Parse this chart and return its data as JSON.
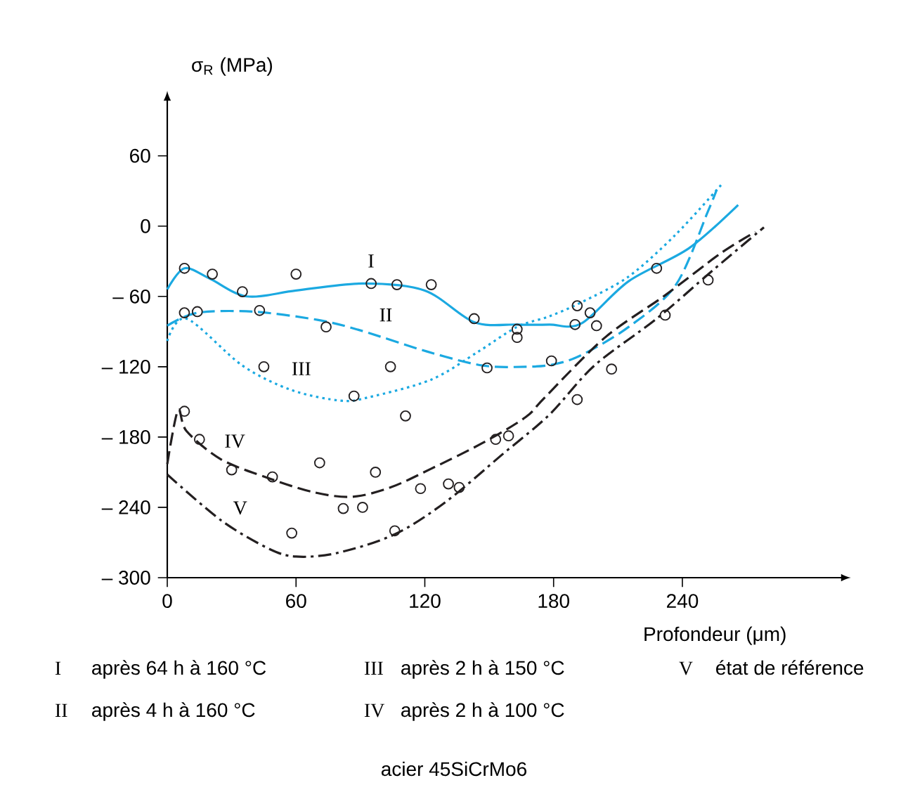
{
  "chart_data": {
    "type": "line",
    "xlabel": "Profondeur (μm)",
    "ylabel": "σ$_{R}$ (MPa)",
    "xlim": [
      0,
      315
    ],
    "ylim": [
      -300,
      109
    ],
    "xticks": [
      0,
      60,
      120,
      180,
      240
    ],
    "yticks": [
      60,
      0,
      {
        "value": -60,
        "label": "– 60"
      },
      {
        "value": -120,
        "label": "– 120"
      },
      {
        "value": -180,
        "label": "– 180"
      },
      {
        "value": -240,
        "label": "– 240"
      },
      {
        "value": -300,
        "label": "– 300"
      }
    ],
    "series": [
      {
        "name": "I",
        "type": "line",
        "color": "#1ba9e1",
        "line_style": "solid",
        "marker": "none",
        "x": [
          0,
          8,
          20,
          37,
          60,
          91,
          120,
          143,
          163,
          178,
          193,
          215,
          243,
          266
        ],
        "values": [
          -54,
          -36,
          -45,
          -60,
          -55,
          -49,
          -55,
          -82,
          -84,
          -84,
          -83,
          -47,
          -19,
          18
        ]
      },
      {
        "name": "II",
        "type": "line",
        "color": "#1ba9e1",
        "line_style": "dashed",
        "marker": "none",
        "x": [
          0,
          14,
          40,
          70,
          90,
          121,
          147,
          167,
          180,
          193,
          215,
          237,
          252,
          256
        ],
        "values": [
          -85,
          -74,
          -73,
          -80,
          -89,
          -107,
          -119,
          -120,
          -118,
          -110,
          -86,
          -50,
          13,
          31
        ]
      },
      {
        "name": "III",
        "type": "line",
        "color": "#1ba9e1",
        "line_style": "dotted",
        "marker": "none",
        "x": [
          0,
          9,
          35,
          58,
          81,
          94,
          123,
          145,
          163,
          178,
          193,
          215,
          237,
          258
        ],
        "values": [
          -98,
          -79,
          -119,
          -140,
          -149,
          -146,
          -131,
          -107,
          -86,
          -77,
          -65,
          -43,
          -7,
          35
        ]
      },
      {
        "name": "IV",
        "type": "line",
        "color": "#231f20",
        "line_style": "dashed",
        "marker": "none",
        "x": [
          0,
          5,
          9,
          25,
          47,
          68,
          86,
          104,
          123,
          147,
          167,
          176,
          204,
          232,
          258,
          274
        ],
        "values": [
          -203,
          -157,
          -175,
          -199,
          -215,
          -227,
          -231,
          -223,
          -207,
          -185,
          -163,
          -146,
          -95,
          -59,
          -23,
          -5
        ]
      },
      {
        "name": "V",
        "type": "line",
        "color": "#231f20",
        "line_style": "dashdot",
        "marker": "none",
        "x": [
          0,
          25,
          47,
          60,
          79,
          106,
          130,
          156,
          178,
          199,
          228,
          254,
          278
        ],
        "values": [
          -212,
          -251,
          -275,
          -282,
          -279,
          -263,
          -235,
          -195,
          -161,
          -119,
          -79,
          -38,
          -1
        ]
      },
      {
        "type": "scatter",
        "color": "#231f20",
        "marker": "circle",
        "x": [
          8,
          21,
          35,
          60,
          95,
          107,
          123,
          143,
          8,
          14,
          43,
          74,
          45,
          87,
          104,
          111,
          8,
          15,
          30,
          49,
          71,
          82,
          91,
          97,
          58,
          106,
          118,
          131,
          136,
          153,
          159,
          149,
          163,
          163,
          191,
          197,
          190,
          200,
          228,
          252,
          232,
          179,
          207,
          191
        ],
        "values": [
          -36,
          -41,
          -56,
          -41,
          -49,
          -50,
          -50,
          -79,
          -74,
          -73,
          -72,
          -86,
          -120,
          -145,
          -120,
          -162,
          -158,
          -182,
          -208,
          -214,
          -202,
          -241,
          -240,
          -210,
          -262,
          -260,
          -224,
          -220,
          -223,
          -182,
          -179,
          -121,
          -88,
          -95,
          -68,
          -74,
          -84,
          -85,
          -36,
          -46,
          -76,
          -115,
          -122,
          -148
        ]
      }
    ],
    "annotations": [
      "après 64 h à 160 °C",
      "après 4 h à 160 °C",
      "après 2 h à 150 °C",
      "après 2 h à 100 °C",
      "état de référence",
      "acier 45SiCrMo6"
    ]
  }
}
